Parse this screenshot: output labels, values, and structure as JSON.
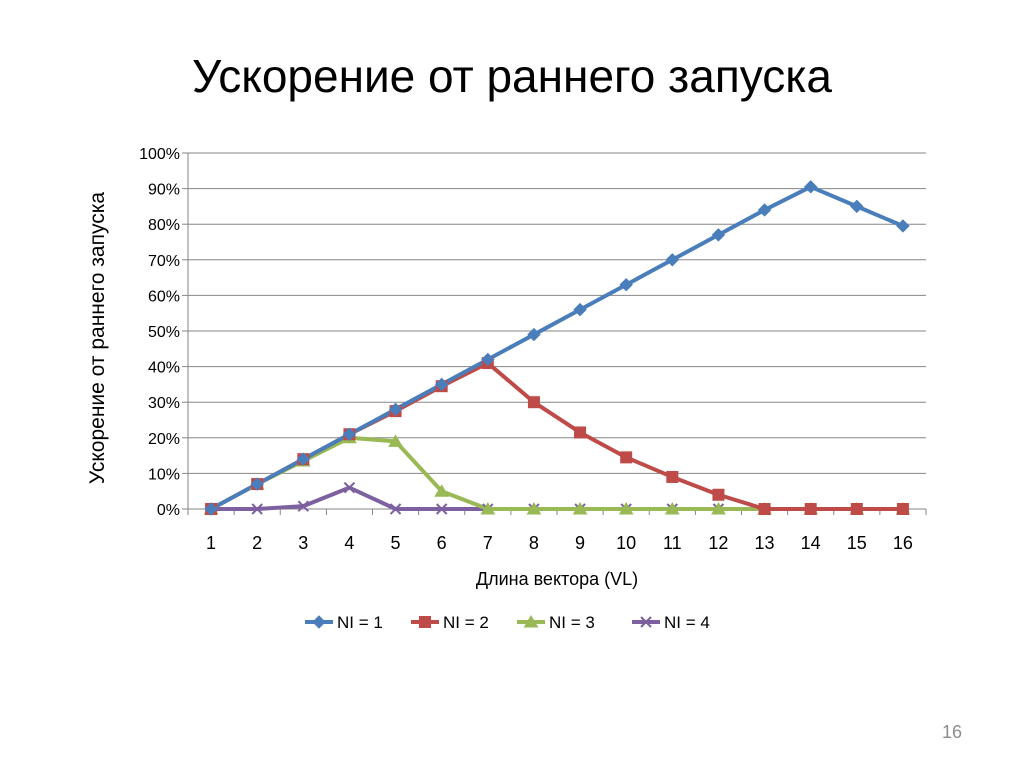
{
  "slide": {
    "title": "Ускорение от раннего запуска",
    "page_number": "16"
  },
  "chart_data": {
    "type": "line",
    "title": "",
    "xlabel": "Длина вектора (VL)",
    "ylabel": "Ускорение от раннего запуска",
    "x": [
      1,
      2,
      3,
      4,
      5,
      6,
      7,
      8,
      9,
      10,
      11,
      12,
      13,
      14,
      15,
      16
    ],
    "x_tick_labels": [
      "1",
      "2",
      "3",
      "4",
      "5",
      "6",
      "7",
      "8",
      "9",
      "10",
      "11",
      "12",
      "13",
      "14",
      "15",
      "16"
    ],
    "ylim": [
      0,
      100
    ],
    "y_tick_labels": [
      "0%",
      "10%",
      "20%",
      "30%",
      "40%",
      "50%",
      "60%",
      "70%",
      "80%",
      "90%",
      "100%"
    ],
    "grid": true,
    "legend_position": "bottom",
    "series": [
      {
        "name": "NI = 1",
        "color": "#4a7ebb",
        "marker": "diamond",
        "values": [
          0,
          7,
          14,
          21,
          28,
          35,
          42,
          49,
          56,
          63,
          70,
          77,
          84,
          90.5,
          85,
          79.5
        ]
      },
      {
        "name": "NI = 2",
        "color": "#be4b48",
        "marker": "square",
        "values": [
          0,
          7,
          14,
          21,
          27.5,
          34.5,
          41,
          30,
          21.5,
          14.5,
          9,
          4,
          0,
          0,
          0,
          0
        ]
      },
      {
        "name": "NI = 3",
        "color": "#98b954",
        "marker": "triangle",
        "values": [
          0,
          7,
          13.5,
          20,
          19,
          5,
          0,
          0,
          0,
          0,
          0,
          0,
          0,
          0,
          0,
          0
        ]
      },
      {
        "name": "NI = 4",
        "color": "#7d60a0",
        "marker": "x",
        "values": [
          0,
          0,
          0.8,
          6,
          0,
          0,
          0,
          0,
          0,
          0,
          0,
          0,
          0,
          0,
          0,
          0
        ]
      }
    ]
  }
}
